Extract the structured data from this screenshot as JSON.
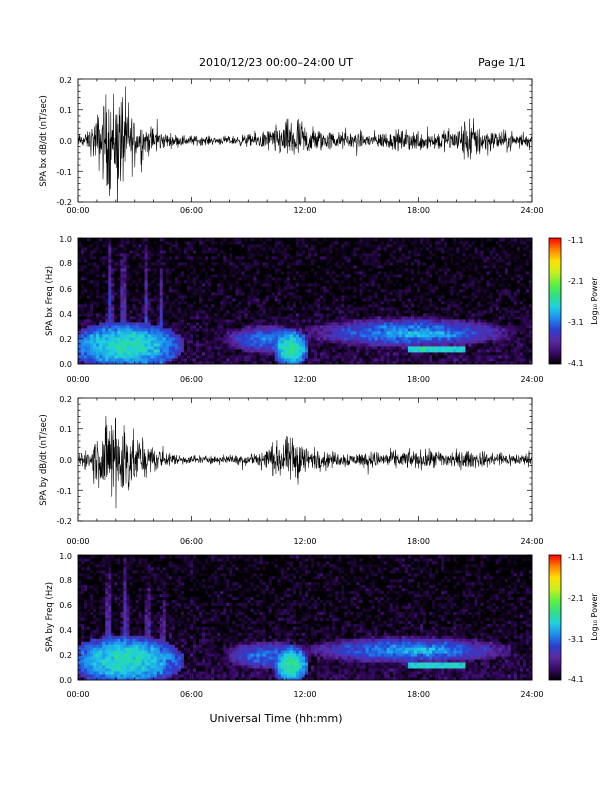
{
  "header": {
    "title": "2010/12/23  00:00–24:00 UT",
    "page": "Page 1/1"
  },
  "footer": {
    "xlabel": "Universal Time (hh:mm)"
  },
  "colorbar": {
    "label": "Log₁₀ Power",
    "ticks": [
      "-1.1",
      "-2.1",
      "-3.1",
      "-4.1"
    ],
    "range": [
      -4.1,
      -1.1
    ],
    "colors": [
      "#000000",
      "#3a0a6a",
      "#5a2aa0",
      "#2a3fd0",
      "#1e8cf0",
      "#20d0e0",
      "#30e080",
      "#60f040",
      "#c8f020",
      "#ffe000",
      "#ff8000",
      "#ff0000"
    ]
  },
  "chart_data": [
    {
      "type": "line",
      "id": "bx-waveform",
      "ylabel": "SPA bx dB/dt (nT/sec)",
      "xticks": [
        "00:00",
        "06:00",
        "12:00",
        "18:00",
        "24:00"
      ],
      "yticks": [
        "-0.2",
        "-0.1",
        "0.0",
        "0.1",
        "0.2"
      ],
      "xlim": [
        0,
        24
      ],
      "ylim": [
        -0.2,
        0.2
      ],
      "envelope": [
        {
          "x": 0.0,
          "y": 0.03
        },
        {
          "x": 0.5,
          "y": 0.04
        },
        {
          "x": 1.0,
          "y": 0.12
        },
        {
          "x": 1.5,
          "y": 0.22
        },
        {
          "x": 2.0,
          "y": 0.25
        },
        {
          "x": 2.5,
          "y": 0.22
        },
        {
          "x": 3.0,
          "y": 0.12
        },
        {
          "x": 3.5,
          "y": 0.08
        },
        {
          "x": 4.0,
          "y": 0.07
        },
        {
          "x": 4.5,
          "y": 0.04
        },
        {
          "x": 5.0,
          "y": 0.03
        },
        {
          "x": 6.0,
          "y": 0.025
        },
        {
          "x": 7.0,
          "y": 0.02
        },
        {
          "x": 8.0,
          "y": 0.02
        },
        {
          "x": 9.0,
          "y": 0.03
        },
        {
          "x": 10.0,
          "y": 0.05
        },
        {
          "x": 11.0,
          "y": 0.09
        },
        {
          "x": 11.5,
          "y": 0.12
        },
        {
          "x": 12.0,
          "y": 0.08
        },
        {
          "x": 13.0,
          "y": 0.05
        },
        {
          "x": 14.0,
          "y": 0.04
        },
        {
          "x": 15.0,
          "y": 0.04
        },
        {
          "x": 16.0,
          "y": 0.04
        },
        {
          "x": 17.0,
          "y": 0.05
        },
        {
          "x": 18.0,
          "y": 0.05
        },
        {
          "x": 19.0,
          "y": 0.05
        },
        {
          "x": 20.0,
          "y": 0.06
        },
        {
          "x": 20.7,
          "y": 0.12
        },
        {
          "x": 21.0,
          "y": 0.09
        },
        {
          "x": 22.0,
          "y": 0.05
        },
        {
          "x": 23.0,
          "y": 0.04
        },
        {
          "x": 24.0,
          "y": 0.03
        }
      ]
    },
    {
      "type": "heatmap",
      "id": "bx-spectrogram",
      "ylabel": "SPA bx Freq (Hz)",
      "xticks": [
        "00:00",
        "06:00",
        "12:00",
        "18:00",
        "24:00"
      ],
      "yticks": [
        "0.0",
        "0.2",
        "0.4",
        "0.6",
        "0.8",
        "1.0"
      ],
      "xlim": [
        0,
        24
      ],
      "ylim": [
        0,
        1.0
      ],
      "colorscale": "Log10 Power",
      "zlim": [
        -4.1,
        -1.1
      ],
      "features": [
        {
          "type": "base",
          "x": [
            0,
            24
          ],
          "f": [
            0,
            1.0
          ],
          "z": -3.9
        },
        {
          "type": "band",
          "x": [
            0,
            5
          ],
          "f": [
            0,
            0.3
          ],
          "z": -2.6
        },
        {
          "type": "column",
          "x": 1.7,
          "f": [
            0,
            1.0
          ],
          "z": -2.9
        },
        {
          "type": "column",
          "x": 2.4,
          "f": [
            0,
            1.0
          ],
          "z": -2.9
        },
        {
          "type": "column",
          "x": 3.6,
          "f": [
            0,
            1.0
          ],
          "z": -3.0
        },
        {
          "type": "column",
          "x": 4.4,
          "f": [
            0,
            1.0
          ],
          "z": -3.1
        },
        {
          "type": "band",
          "x": [
            8,
            12
          ],
          "f": [
            0.1,
            0.3
          ],
          "z": -3.1
        },
        {
          "type": "band",
          "x": [
            10.5,
            12
          ],
          "f": [
            0,
            0.25
          ],
          "z": -2.5
        },
        {
          "type": "band",
          "x": [
            13,
            22
          ],
          "f": [
            0.15,
            0.35
          ],
          "z": -3.0
        },
        {
          "type": "band",
          "x": [
            15,
            21
          ],
          "f": [
            0.2,
            0.28
          ],
          "z": -2.8
        },
        {
          "type": "line",
          "x": [
            17.5,
            20.5
          ],
          "f": [
            0.1,
            0.13
          ],
          "z": -2.7
        }
      ]
    },
    {
      "type": "line",
      "id": "by-waveform",
      "ylabel": "SPA by dB/dt (nT/sec)",
      "xticks": [
        "00:00",
        "06:00",
        "12:00",
        "18:00",
        "24:00"
      ],
      "yticks": [
        "-0.2",
        "-0.1",
        "0.0",
        "0.1",
        "0.2"
      ],
      "xlim": [
        0,
        24
      ],
      "ylim": [
        -0.2,
        0.2
      ],
      "envelope": [
        {
          "x": 0.0,
          "y": 0.03
        },
        {
          "x": 0.5,
          "y": 0.05
        },
        {
          "x": 1.0,
          "y": 0.12
        },
        {
          "x": 1.5,
          "y": 0.2
        },
        {
          "x": 2.0,
          "y": 0.25
        },
        {
          "x": 2.5,
          "y": 0.2
        },
        {
          "x": 3.0,
          "y": 0.12
        },
        {
          "x": 3.5,
          "y": 0.08
        },
        {
          "x": 4.0,
          "y": 0.06
        },
        {
          "x": 4.5,
          "y": 0.04
        },
        {
          "x": 5.0,
          "y": 0.03
        },
        {
          "x": 6.0,
          "y": 0.02
        },
        {
          "x": 7.0,
          "y": 0.02
        },
        {
          "x": 8.0,
          "y": 0.02
        },
        {
          "x": 9.0,
          "y": 0.03
        },
        {
          "x": 10.0,
          "y": 0.06
        },
        {
          "x": 11.0,
          "y": 0.1
        },
        {
          "x": 11.5,
          "y": 0.13
        },
        {
          "x": 12.0,
          "y": 0.07
        },
        {
          "x": 13.0,
          "y": 0.04
        },
        {
          "x": 14.0,
          "y": 0.035
        },
        {
          "x": 15.0,
          "y": 0.035
        },
        {
          "x": 16.0,
          "y": 0.04
        },
        {
          "x": 17.0,
          "y": 0.04
        },
        {
          "x": 18.0,
          "y": 0.045
        },
        {
          "x": 19.0,
          "y": 0.045
        },
        {
          "x": 20.0,
          "y": 0.045
        },
        {
          "x": 21.0,
          "y": 0.04
        },
        {
          "x": 22.0,
          "y": 0.035
        },
        {
          "x": 23.0,
          "y": 0.03
        },
        {
          "x": 24.0,
          "y": 0.03
        }
      ]
    },
    {
      "type": "heatmap",
      "id": "by-spectrogram",
      "ylabel": "SPA by Freq (Hz)",
      "xticks": [
        "00:00",
        "06:00",
        "12:00",
        "18:00",
        "24:00"
      ],
      "yticks": [
        "0.0",
        "0.2",
        "0.4",
        "0.6",
        "0.8",
        "1.0"
      ],
      "xlim": [
        0,
        24
      ],
      "ylim": [
        0,
        1.0
      ],
      "colorscale": "Log10 Power",
      "zlim": [
        -4.1,
        -1.1
      ],
      "features": [
        {
          "type": "base",
          "x": [
            0,
            24
          ],
          "f": [
            0,
            1.0
          ],
          "z": -3.9
        },
        {
          "type": "band",
          "x": [
            0,
            5
          ],
          "f": [
            0,
            0.32
          ],
          "z": -2.6
        },
        {
          "type": "column",
          "x": 1.6,
          "f": [
            0,
            1.0
          ],
          "z": -2.9
        },
        {
          "type": "column",
          "x": 2.5,
          "f": [
            0,
            1.0
          ],
          "z": -2.9
        },
        {
          "type": "column",
          "x": 3.7,
          "f": [
            0,
            1.0
          ],
          "z": -3.0
        },
        {
          "type": "column",
          "x": 4.5,
          "f": [
            0,
            1.0
          ],
          "z": -3.1
        },
        {
          "type": "band",
          "x": [
            8,
            12
          ],
          "f": [
            0.1,
            0.3
          ],
          "z": -3.1
        },
        {
          "type": "band",
          "x": [
            10.5,
            12
          ],
          "f": [
            0,
            0.25
          ],
          "z": -2.5
        },
        {
          "type": "band",
          "x": [
            13,
            22
          ],
          "f": [
            0.15,
            0.33
          ],
          "z": -3.0
        },
        {
          "type": "band",
          "x": [
            15.5,
            21
          ],
          "f": [
            0.2,
            0.27
          ],
          "z": -2.8
        },
        {
          "type": "line",
          "x": [
            17.5,
            20.5
          ],
          "f": [
            0.1,
            0.13
          ],
          "z": -2.7
        }
      ]
    }
  ]
}
